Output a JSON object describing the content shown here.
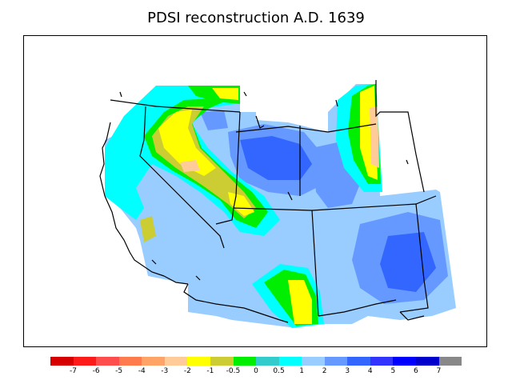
{
  "title": "PDSI reconstruction A.D. 1639",
  "legend": {
    "colors": [
      "#d60000",
      "#ff1a1a",
      "#ff4d4d",
      "#ff7a4d",
      "#ffa366",
      "#ffcc99",
      "#ffff00",
      "#cccc33",
      "#00ee00",
      "#33cccc",
      "#00ffff",
      "#99ccff",
      "#6699ff",
      "#3366ff",
      "#3333ff",
      "#0000ff",
      "#0000cc",
      "#888888"
    ],
    "labels": [
      "-7",
      "-6",
      "-5",
      "-4",
      "-3",
      "-2",
      "-1",
      "-0.5",
      "0",
      "0.5",
      "1",
      "2",
      "3",
      "4",
      "5",
      "6",
      "7"
    ]
  },
  "map_colors": {
    "land_base": "#99ccff",
    "wet_mid": "#6699ff",
    "wet_strong": "#3366ff",
    "cyan": "#00ffff",
    "green": "#00ee00",
    "olive": "#cccc33",
    "yellow": "#ffff00",
    "peach": "#ffcc99",
    "teal": "#33cccc",
    "border": "#000000"
  }
}
